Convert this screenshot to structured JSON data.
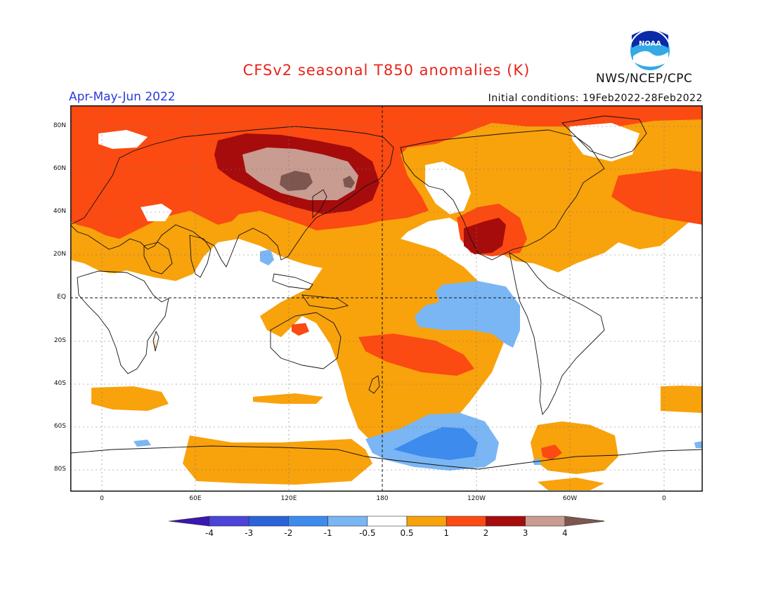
{
  "header": {
    "title": "CFSv2 seasonal T850 anomalies (K)",
    "season": "Apr-May-Jun 2022",
    "initial_conditions": "Initial conditions: 19Feb2022-28Feb2022",
    "agency": "NWS/NCEP/CPC",
    "logo_text": "NOAA"
  },
  "map": {
    "projection": "cylindrical equidistant",
    "lat_labels": [
      "80N",
      "60N",
      "40N",
      "20N",
      "EQ",
      "20S",
      "40S",
      "60S",
      "80S"
    ],
    "lon_labels": [
      "0",
      "60E",
      "120E",
      "180",
      "120W",
      "60W",
      "0"
    ],
    "grid": "dotted"
  },
  "colorbar": {
    "labels": [
      "-4",
      "-3",
      "-2",
      "-1",
      "-0.5",
      "0.5",
      "1",
      "2",
      "3",
      "4"
    ],
    "colors": [
      "#3a17b0",
      "#4a44d8",
      "#2b64d8",
      "#3e8bee",
      "#7ab6f4",
      "#ffffff",
      "#f8a20c",
      "#fb4a12",
      "#a60c0c",
      "#c89c90",
      "#7e5650"
    ]
  }
}
